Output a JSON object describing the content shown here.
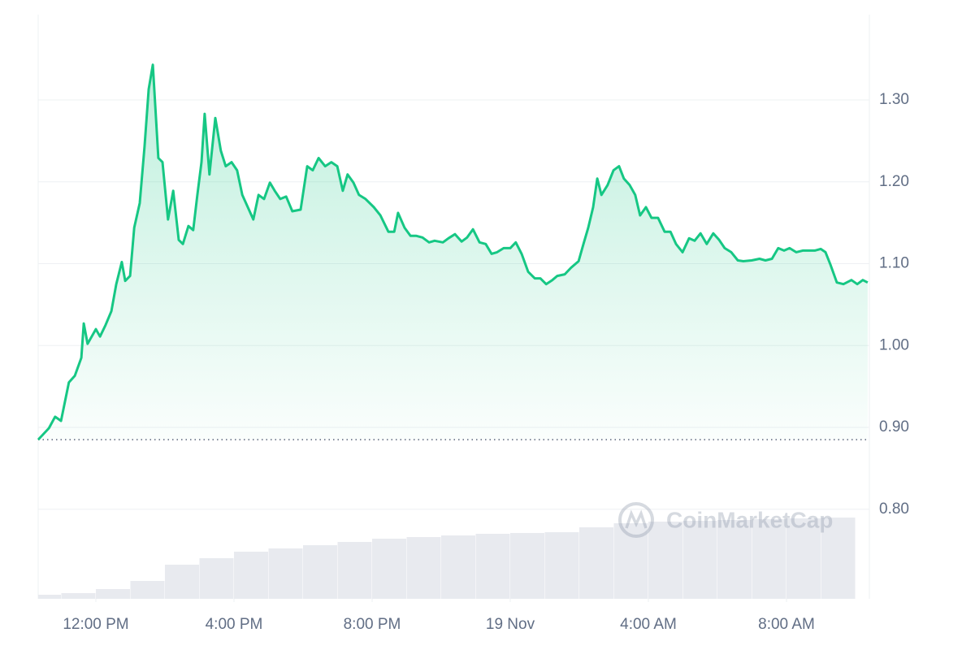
{
  "chart_data": {
    "type": "line",
    "color": "#16c784",
    "x": [
      10.33,
      10.64,
      10.82,
      10.99,
      11.22,
      11.39,
      11.58,
      11.65,
      11.76,
      12.0,
      12.12,
      12.28,
      12.45,
      12.59,
      12.75,
      12.85,
      12.99,
      13.11,
      13.27,
      13.41,
      13.53,
      13.65,
      13.81,
      13.93,
      14.09,
      14.24,
      14.4,
      14.52,
      14.68,
      14.82,
      14.94,
      15.06,
      15.15,
      15.29,
      15.46,
      15.62,
      15.76,
      15.93,
      16.09,
      16.24,
      16.4,
      16.56,
      16.71,
      16.87,
      17.04,
      17.18,
      17.34,
      17.51,
      17.69,
      17.93,
      18.12,
      18.28,
      18.45,
      18.64,
      18.82,
      18.99,
      19.15,
      19.29,
      19.46,
      19.62,
      19.81,
      20.05,
      20.24,
      20.47,
      20.64,
      20.75,
      20.94,
      21.11,
      21.27,
      21.46,
      21.65,
      21.81,
      22.05,
      22.21,
      22.4,
      22.59,
      22.75,
      22.92,
      23.11,
      23.29,
      23.46,
      23.62,
      23.81,
      24.0,
      24.16,
      24.33,
      24.52,
      24.71,
      24.87,
      25.04,
      25.22,
      25.36,
      25.58,
      25.76,
      25.98,
      26.12,
      26.26,
      26.4,
      26.52,
      26.64,
      26.82,
      26.99,
      27.15,
      27.29,
      27.46,
      27.62,
      27.76,
      27.93,
      28.09,
      28.28,
      28.47,
      28.64,
      28.8,
      28.99,
      29.18,
      29.34,
      29.51,
      29.69,
      29.88,
      30.05,
      30.21,
      30.4,
      30.59,
      30.75,
      30.99,
      31.22,
      31.39,
      31.58,
      31.76,
      31.93,
      32.09,
      32.28,
      32.47,
      32.64,
      32.82,
      32.99,
      33.13,
      33.27,
      33.46,
      33.65,
      33.88,
      34.05,
      34.21,
      34.35
    ],
    "values": [
      0.885,
      0.899,
      0.913,
      0.908,
      0.955,
      0.963,
      0.985,
      1.027,
      1.002,
      1.02,
      1.011,
      1.025,
      1.042,
      1.075,
      1.102,
      1.079,
      1.085,
      1.144,
      1.174,
      1.243,
      1.313,
      1.343,
      1.229,
      1.224,
      1.154,
      1.189,
      1.129,
      1.124,
      1.146,
      1.141,
      1.184,
      1.224,
      1.283,
      1.209,
      1.278,
      1.238,
      1.219,
      1.224,
      1.214,
      1.184,
      1.169,
      1.154,
      1.184,
      1.179,
      1.199,
      1.189,
      1.179,
      1.182,
      1.164,
      1.166,
      1.219,
      1.214,
      1.229,
      1.219,
      1.224,
      1.219,
      1.189,
      1.209,
      1.199,
      1.184,
      1.179,
      1.169,
      1.159,
      1.139,
      1.139,
      1.162,
      1.144,
      1.134,
      1.134,
      1.132,
      1.126,
      1.128,
      1.126,
      1.131,
      1.136,
      1.127,
      1.132,
      1.142,
      1.126,
      1.124,
      1.112,
      1.114,
      1.119,
      1.119,
      1.126,
      1.112,
      1.09,
      1.082,
      1.082,
      1.075,
      1.08,
      1.085,
      1.087,
      1.095,
      1.103,
      1.124,
      1.144,
      1.169,
      1.204,
      1.184,
      1.196,
      1.214,
      1.219,
      1.204,
      1.196,
      1.184,
      1.159,
      1.169,
      1.156,
      1.156,
      1.139,
      1.139,
      1.124,
      1.114,
      1.131,
      1.128,
      1.137,
      1.124,
      1.137,
      1.129,
      1.119,
      1.114,
      1.104,
      1.103,
      1.104,
      1.106,
      1.104,
      1.106,
      1.119,
      1.116,
      1.119,
      1.114,
      1.116,
      1.116,
      1.116,
      1.118,
      1.114,
      1.099,
      1.077,
      1.075,
      1.08,
      1.075,
      1.08,
      1.077
    ],
    "volume": {
      "color": "#e8eaef",
      "x": [
        10.5,
        11.5,
        12.5,
        13.5,
        14.5,
        15.5,
        16.5,
        17.5,
        18.5,
        19.5,
        20.5,
        21.5,
        22.5,
        23.5,
        24.5,
        25.5,
        26.5,
        27.5,
        28.5,
        29.5,
        30.5,
        31.5,
        32.5,
        33.5
      ],
      "values": [
        5,
        7,
        12,
        22,
        42,
        50,
        58,
        62,
        66,
        70,
        74,
        76,
        78,
        80,
        81,
        82,
        88,
        93,
        95,
        96,
        97,
        98,
        99,
        100
      ]
    },
    "xlim": [
      10.33,
      34.4
    ],
    "xticks": [
      {
        "value": 12,
        "label": "12:00 PM"
      },
      {
        "value": 16,
        "label": "4:00 PM"
      },
      {
        "value": 20,
        "label": "8:00 PM"
      },
      {
        "value": 24,
        "label": "19 Nov"
      },
      {
        "value": 28,
        "label": "4:00 AM"
      },
      {
        "value": 32,
        "label": "8:00 AM"
      }
    ],
    "ylim": [
      0.6906,
      1.4042
    ],
    "yticks": [
      {
        "value": 0.8,
        "label": "0.80"
      },
      {
        "value": 0.9,
        "label": "0.90"
      },
      {
        "value": 1.0,
        "label": "1.00"
      },
      {
        "value": 1.1,
        "label": "1.10"
      },
      {
        "value": 1.2,
        "label": "1.20"
      },
      {
        "value": 1.3,
        "label": "1.30"
      }
    ],
    "grid": true,
    "watermark": "CoinMarketCap"
  }
}
